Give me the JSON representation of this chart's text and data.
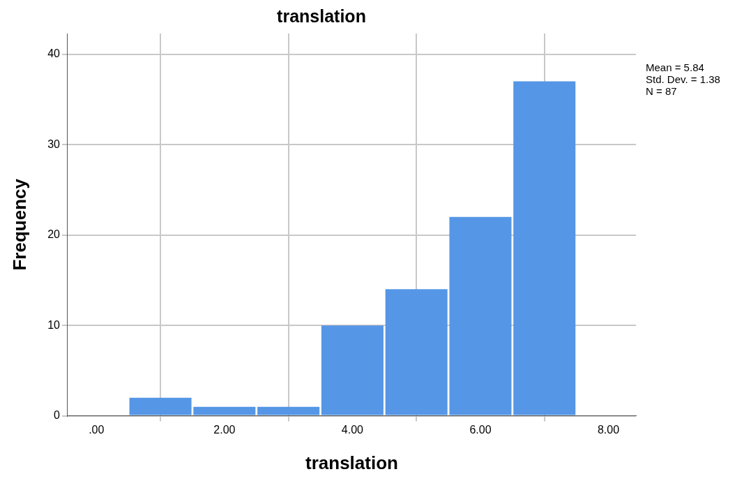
{
  "chart_data": {
    "type": "histogram",
    "title": "translation",
    "xlabel": "translation",
    "ylabel": "Frequency",
    "bins": [
      0.5,
      1.5,
      2.5,
      3.5,
      4.5,
      5.5,
      6.5,
      7.5
    ],
    "values": [
      2,
      1,
      1,
      10,
      14,
      22,
      37
    ],
    "color": "#5596e6",
    "xlim": [
      -0.45,
      8.43
    ],
    "xticks": [
      {
        "value": 0,
        "label": ".00"
      },
      {
        "value": 2,
        "label": "2.00"
      },
      {
        "value": 4,
        "label": "4.00"
      },
      {
        "value": 6,
        "label": "6.00"
      },
      {
        "value": 8,
        "label": "8.00"
      }
    ],
    "ylim": [
      0,
      42.3
    ],
    "yticks": [
      0,
      10,
      20,
      30,
      40
    ],
    "grid": true,
    "legend": false,
    "annotations": [
      "Mean = 5.84",
      "Std. Dev. = 1.38",
      "N = 87"
    ]
  }
}
